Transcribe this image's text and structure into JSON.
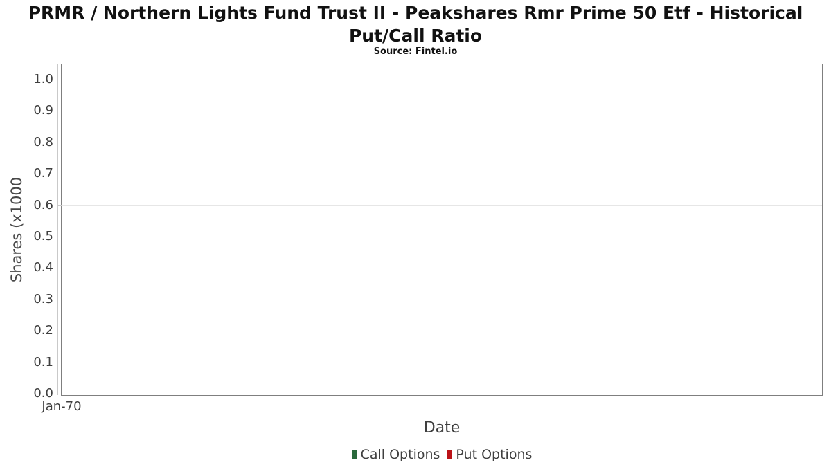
{
  "chart_data": {
    "type": "line",
    "title": "PRMR / Northern Lights Fund Trust II - Peakshares Rmr Prime 50 Etf - Historical Put/Call Ratio",
    "subtitle": "Source: Fintel.io",
    "xlabel": "Date",
    "ylabel": "Shares (x1000",
    "ylim": [
      0.0,
      1.0
    ],
    "grid": true,
    "y_ticks": [
      "0.0",
      "0.1",
      "0.2",
      "0.3",
      "0.4",
      "0.5",
      "0.6",
      "0.7",
      "0.8",
      "0.9",
      "1.0"
    ],
    "x_tick_labels": [
      "Jan-70"
    ],
    "legend": {
      "position": "bottom",
      "entries": [
        {
          "label": "Call Options",
          "color": "#2a693c"
        },
        {
          "label": "Put Options",
          "color": "#bb1217"
        }
      ]
    },
    "series": [
      {
        "name": "Call Options",
        "color": "#2a693c",
        "x": [],
        "values": []
      },
      {
        "name": "Put Options",
        "color": "#bb1217",
        "x": [],
        "values": []
      }
    ]
  }
}
